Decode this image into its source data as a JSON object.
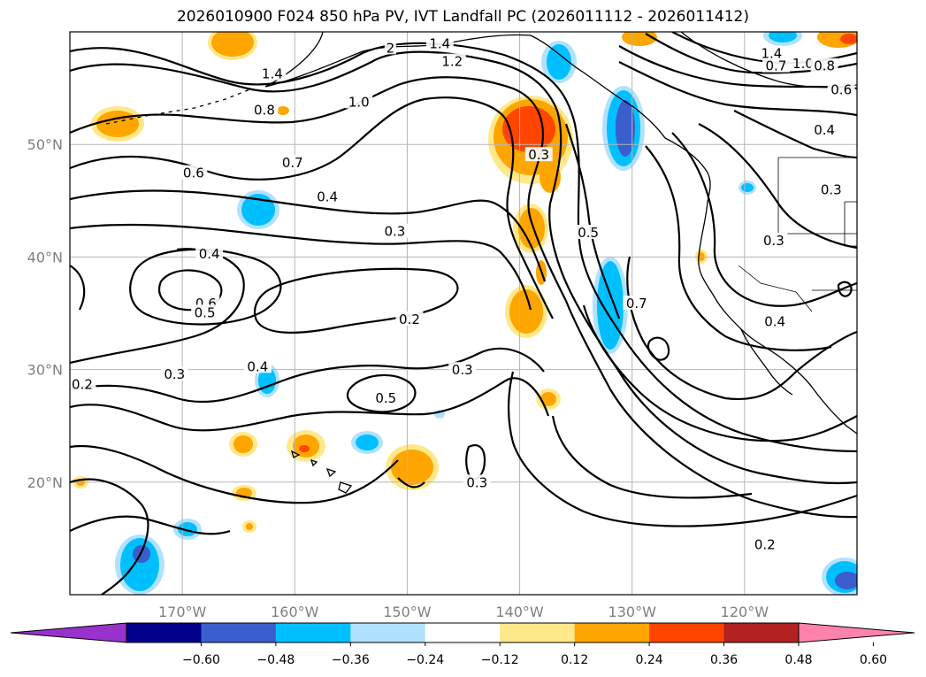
{
  "title": "2026010900 F024 850 hPa PV, IVT Landfall PC (2026011112 - 2026011412)",
  "map": {
    "lon_range": [
      -180,
      -110
    ],
    "lat_range": [
      10,
      60
    ],
    "lon_ticks": [
      {
        "lon": -170,
        "label": "170°W"
      },
      {
        "lon": -160,
        "label": "160°W"
      },
      {
        "lon": -150,
        "label": "150°W"
      },
      {
        "lon": -140,
        "label": "140°W"
      },
      {
        "lon": -130,
        "label": "130°W"
      },
      {
        "lon": -120,
        "label": "120°W"
      }
    ],
    "lat_ticks": [
      {
        "lat": 50,
        "label": "50°N"
      },
      {
        "lat": 40,
        "label": "40°N"
      },
      {
        "lat": 30,
        "label": "30°N"
      },
      {
        "lat": 20,
        "label": "20°N"
      }
    ],
    "contour_labels": [
      {
        "text": "1.4",
        "lon": -162,
        "lat": 56.1
      },
      {
        "text": "0.8",
        "lon": -162.7,
        "lat": 52.9
      },
      {
        "text": "1.0",
        "lon": -154.3,
        "lat": 53.6
      },
      {
        "text": "1.2",
        "lon": -146,
        "lat": 57.2
      },
      {
        "text": "1.4",
        "lon": -147.1,
        "lat": 58.8
      },
      {
        "text": "2",
        "lon": -151.5,
        "lat": 58.4
      },
      {
        "text": "0.6",
        "lon": -169,
        "lat": 47.3
      },
      {
        "text": "0.7",
        "lon": -160.2,
        "lat": 48.2
      },
      {
        "text": "0.4",
        "lon": -157.1,
        "lat": 45.2
      },
      {
        "text": "0.3",
        "lon": -151.1,
        "lat": 42.1
      },
      {
        "text": "0.3",
        "lon": -138.3,
        "lat": 48.9
      },
      {
        "text": "0.5",
        "lon": -133.9,
        "lat": 42
      },
      {
        "text": "0.4",
        "lon": -167.6,
        "lat": 40.1
      },
      {
        "text": "0.6",
        "lon": -167.9,
        "lat": 35.7
      },
      {
        "text": "0.5",
        "lon": -168,
        "lat": 34.9
      },
      {
        "text": "0.2",
        "lon": -149.8,
        "lat": 34.3
      },
      {
        "text": "0.4",
        "lon": -163.3,
        "lat": 30.1
      },
      {
        "text": "0.3",
        "lon": -170.7,
        "lat": 29.4
      },
      {
        "text": "0.2",
        "lon": -178.9,
        "lat": 28.5
      },
      {
        "text": "0.5",
        "lon": -151.9,
        "lat": 27.3
      },
      {
        "text": "0.3",
        "lon": -145.1,
        "lat": 29.8
      },
      {
        "text": "0.3",
        "lon": -143.8,
        "lat": 19.8
      },
      {
        "text": "0.7",
        "lon": -129.6,
        "lat": 35.7
      },
      {
        "text": "0.3",
        "lon": -117.4,
        "lat": 41.3
      },
      {
        "text": "0.4",
        "lon": -117.3,
        "lat": 34.1
      },
      {
        "text": "0.2",
        "lon": -118.2,
        "lat": 14.3
      },
      {
        "text": "0.7",
        "lon": -117.2,
        "lat": 56.8
      },
      {
        "text": "1.0",
        "lon": -114.8,
        "lat": 57
      },
      {
        "text": "0.8",
        "lon": -112.9,
        "lat": 56.8
      },
      {
        "text": "0.6",
        "lon": -111.4,
        "lat": 54.7
      },
      {
        "text": "0.4",
        "lon": -112.9,
        "lat": 51.1
      },
      {
        "text": "0.3",
        "lon": -112.3,
        "lat": 45.8
      },
      {
        "text": "1.4",
        "lon": -117.6,
        "lat": 57.9
      }
    ]
  },
  "colorbar": {
    "ticks": [
      "−0.60",
      "−0.48",
      "−0.36",
      "−0.24",
      "−0.12",
      "0.12",
      "0.24",
      "0.36",
      "0.48",
      "0.60"
    ],
    "colors": [
      "#9932cc",
      "#00008b",
      "#3a5fcd",
      "#00bfff",
      "#b0e2ff",
      "#ffffff",
      "#ffe88a",
      "#ffa500",
      "#ff4500",
      "#b22222",
      "#ff82ab"
    ]
  }
}
